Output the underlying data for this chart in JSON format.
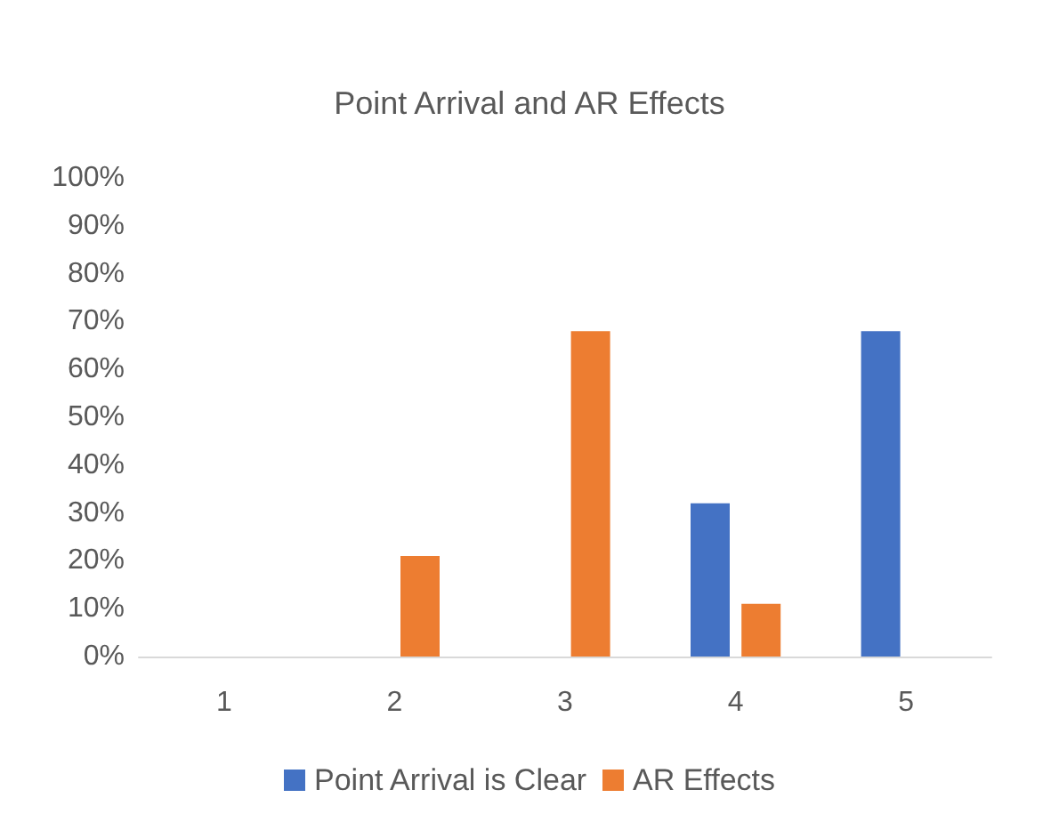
{
  "chart_data": {
    "type": "bar",
    "title": "Point Arrival and AR Effects",
    "categories": [
      "1",
      "2",
      "3",
      "4",
      "5"
    ],
    "series": [
      {
        "name": "Point Arrival is Clear",
        "color": "#4472c4",
        "values": [
          0,
          0,
          0,
          32,
          68
        ]
      },
      {
        "name": "AR Effects",
        "color": "#ed7d31",
        "values": [
          0,
          21,
          68,
          11,
          0
        ]
      }
    ],
    "ylim": [
      0,
      100
    ],
    "yticks": [
      {
        "value": 0,
        "label": "0%"
      },
      {
        "value": 10,
        "label": "10%"
      },
      {
        "value": 20,
        "label": "20%"
      },
      {
        "value": 30,
        "label": "30%"
      },
      {
        "value": 40,
        "label": "40%"
      },
      {
        "value": 50,
        "label": "50%"
      },
      {
        "value": 60,
        "label": "60%"
      },
      {
        "value": 70,
        "label": "70%"
      },
      {
        "value": 80,
        "label": "80%"
      },
      {
        "value": 90,
        "label": "90%"
      },
      {
        "value": 100,
        "label": "100%"
      }
    ],
    "grid": false,
    "legend": "bottom"
  }
}
